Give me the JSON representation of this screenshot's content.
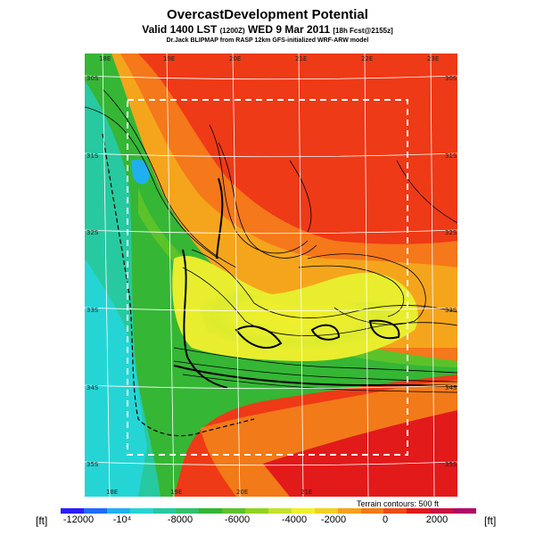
{
  "header": {
    "title": "OvercastDevelopment Potential",
    "valid_line": "Valid 1400 LST",
    "valid_small": "(1200Z)",
    "valid_date": "WED 9 Mar 2011",
    "valid_tag": "[18h Fcst@2155z]",
    "source": "Dr.Jack BLIPMAP from RASP 12km GFS-initialized WRF-ARW model"
  },
  "map": {
    "lon_top": [
      "18E",
      "19E",
      "20E",
      "21E",
      "22E",
      "23E"
    ],
    "lon_bottom": [
      "18E",
      "19E",
      "20E",
      "21E"
    ],
    "lat_right": [
      "30S",
      "31S",
      "32S",
      "33S",
      "34S",
      "35S"
    ],
    "lat_left": [
      "30S",
      "31S",
      "32S",
      "33S",
      "34S",
      "35S"
    ]
  },
  "colorbar": {
    "unit_left": "[ft]",
    "unit_right": "[ft]",
    "ticks": [
      "-12000",
      "-10⁴",
      "-8000",
      "-6000",
      "-4000",
      "-2000",
      "0",
      "2000"
    ],
    "colors": [
      "#2a1cff",
      "#1e6cff",
      "#1fb0f0",
      "#25d5d5",
      "#27c9a0",
      "#2ec26a",
      "#35b635",
      "#5cc22a",
      "#8fd41f",
      "#c2e22a",
      "#f0f02a",
      "#f5d022",
      "#f5a21c",
      "#f27a18",
      "#ee4c16",
      "#e21a1a",
      "#cc1040",
      "#b00a6a"
    ]
  },
  "terrain_note": "Terrain contours: 500 ft"
}
